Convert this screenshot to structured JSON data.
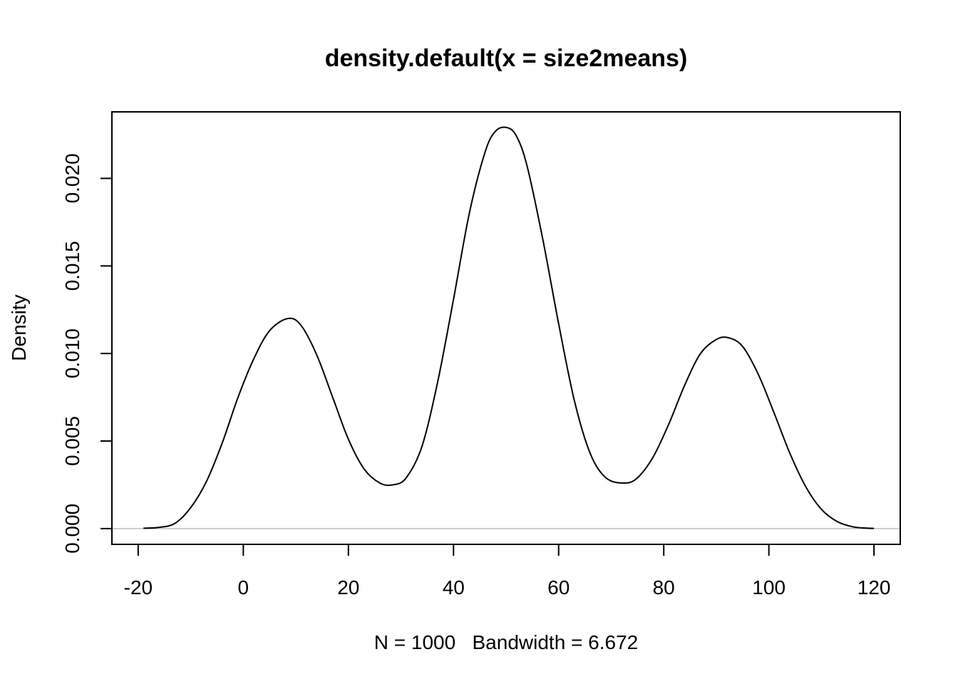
{
  "chart_data": {
    "type": "line",
    "title": "density.default(x = size2means)",
    "xlabel": "N = 1000   Bandwidth = 6.672",
    "ylabel": "Density",
    "xlim": [
      -25,
      125
    ],
    "ylim": [
      -0.0009,
      0.0238
    ],
    "x_ticks": [
      -20,
      0,
      20,
      40,
      60,
      80,
      100,
      120
    ],
    "x_tick_labels": [
      "-20",
      "0",
      "20",
      "40",
      "60",
      "80",
      "100",
      "120"
    ],
    "y_ticks": [
      0.0,
      0.005,
      0.01,
      0.015,
      0.02
    ],
    "y_tick_labels": [
      "0.000",
      "0.005",
      "0.010",
      "0.015",
      "0.020"
    ],
    "baseline": 0,
    "grid": false,
    "legend": "none",
    "line_color": "#000000",
    "baseline_color": "#bebebe",
    "series": [
      {
        "x": [
          -19,
          -16,
          -13,
          -10,
          -7,
          -4,
          -1,
          2,
          5,
          8.5,
          11,
          14,
          17,
          20,
          23,
          26,
          28.5,
          31,
          34,
          37,
          40,
          43,
          46,
          48,
          50.2,
          52,
          54,
          57,
          60,
          63,
          66,
          69,
          72.5,
          75,
          78,
          81,
          84,
          87,
          90,
          92.3,
          95,
          98,
          101,
          104,
          107,
          110,
          113,
          116,
          119,
          120
        ],
        "y": [
          2e-05,
          7e-05,
          0.0003,
          0.0012,
          0.0027,
          0.0049,
          0.0075,
          0.0097,
          0.0113,
          0.012,
          0.0116,
          0.0099,
          0.0075,
          0.0051,
          0.0034,
          0.0026,
          0.0025,
          0.0029,
          0.0047,
          0.0084,
          0.0131,
          0.018,
          0.0215,
          0.0227,
          0.0229,
          0.0224,
          0.0207,
          0.0165,
          0.0117,
          0.0073,
          0.0043,
          0.0029,
          0.0026,
          0.0029,
          0.0041,
          0.006,
          0.0082,
          0.01,
          0.0108,
          0.0109,
          0.0104,
          0.0088,
          0.0066,
          0.0043,
          0.0024,
          0.0011,
          0.0004,
          0.0001,
          2e-05,
          1e-05
        ]
      }
    ]
  }
}
